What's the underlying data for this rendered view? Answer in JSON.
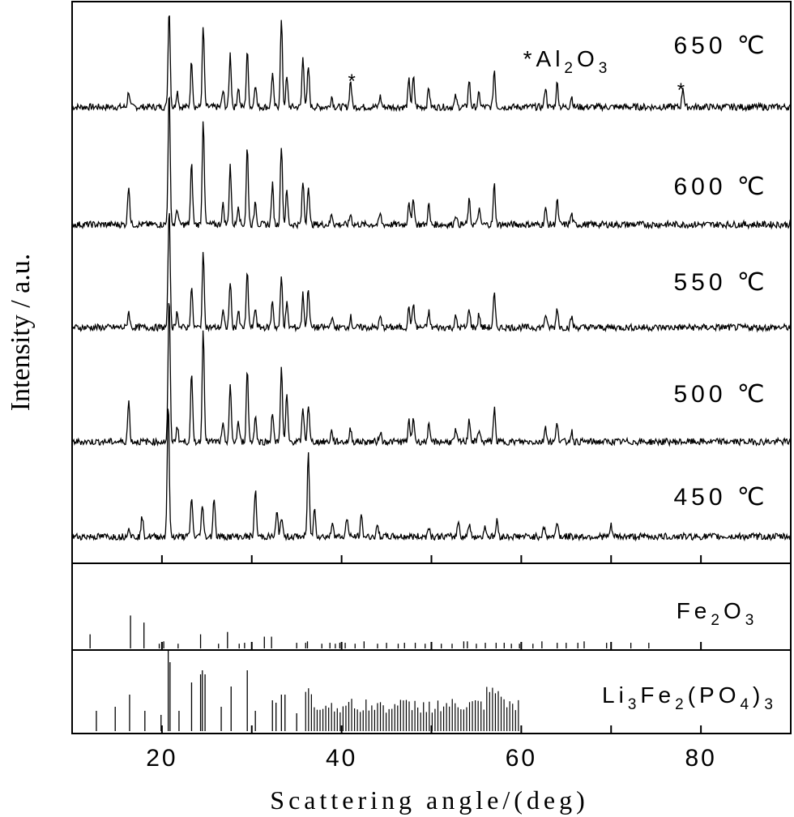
{
  "chart_data": {
    "type": "line",
    "xlabel": "Scattering angle/(deg)",
    "ylabel": "Intensity / a.u.",
    "xlim": [
      10,
      90
    ],
    "x_ticks": [
      20,
      40,
      60,
      80
    ],
    "grid": false,
    "annotation": "*Al2O3",
    "impurity_marker": "*",
    "impurity_peaks": [
      41.0,
      78.0
    ],
    "series": [
      {
        "name": "650 ℃",
        "baseline": 0.12,
        "peaks": [
          [
            16.3,
            0.12
          ],
          [
            20.8,
            0.75
          ],
          [
            21.7,
            0.12
          ],
          [
            23.3,
            0.35
          ],
          [
            24.6,
            0.6
          ],
          [
            26.8,
            0.12
          ],
          [
            27.6,
            0.4
          ],
          [
            28.5,
            0.15
          ],
          [
            29.5,
            0.42
          ],
          [
            30.4,
            0.18
          ],
          [
            32.3,
            0.25
          ],
          [
            33.3,
            0.65
          ],
          [
            33.9,
            0.22
          ],
          [
            35.7,
            0.38
          ],
          [
            36.3,
            0.3
          ],
          [
            38.9,
            0.08
          ],
          [
            41.0,
            0.2
          ],
          [
            44.3,
            0.08
          ],
          [
            47.5,
            0.2
          ],
          [
            48.0,
            0.22
          ],
          [
            49.7,
            0.15
          ],
          [
            52.7,
            0.08
          ],
          [
            54.2,
            0.2
          ],
          [
            55.3,
            0.1
          ],
          [
            57.0,
            0.28
          ],
          [
            62.7,
            0.15
          ],
          [
            64.0,
            0.18
          ],
          [
            65.6,
            0.08
          ],
          [
            78.0,
            0.15
          ]
        ]
      },
      {
        "name": "600 ℃",
        "baseline": 0.12,
        "peaks": [
          [
            16.3,
            0.3
          ],
          [
            20.8,
            1.0
          ],
          [
            21.7,
            0.12
          ],
          [
            23.3,
            0.45
          ],
          [
            24.6,
            0.8
          ],
          [
            26.8,
            0.15
          ],
          [
            27.6,
            0.45
          ],
          [
            28.5,
            0.15
          ],
          [
            29.5,
            0.58
          ],
          [
            30.4,
            0.18
          ],
          [
            32.3,
            0.3
          ],
          [
            33.3,
            0.6
          ],
          [
            33.9,
            0.25
          ],
          [
            35.7,
            0.32
          ],
          [
            36.3,
            0.3
          ],
          [
            38.9,
            0.08
          ],
          [
            41.0,
            0.08
          ],
          [
            44.3,
            0.08
          ],
          [
            47.5,
            0.18
          ],
          [
            48.0,
            0.2
          ],
          [
            49.7,
            0.15
          ],
          [
            52.7,
            0.08
          ],
          [
            54.2,
            0.18
          ],
          [
            55.3,
            0.12
          ],
          [
            57.0,
            0.3
          ],
          [
            62.7,
            0.12
          ],
          [
            64.0,
            0.18
          ],
          [
            65.6,
            0.08
          ]
        ]
      },
      {
        "name": "550 ℃",
        "baseline": 0.12,
        "peaks": [
          [
            16.3,
            0.12
          ],
          [
            20.8,
            0.9
          ],
          [
            21.7,
            0.12
          ],
          [
            23.3,
            0.3
          ],
          [
            24.6,
            0.55
          ],
          [
            26.8,
            0.12
          ],
          [
            27.6,
            0.35
          ],
          [
            28.5,
            0.12
          ],
          [
            29.5,
            0.42
          ],
          [
            30.4,
            0.15
          ],
          [
            32.3,
            0.2
          ],
          [
            33.3,
            0.38
          ],
          [
            33.9,
            0.18
          ],
          [
            35.7,
            0.25
          ],
          [
            36.3,
            0.3
          ],
          [
            38.9,
            0.08
          ],
          [
            41.0,
            0.08
          ],
          [
            44.3,
            0.08
          ],
          [
            47.5,
            0.15
          ],
          [
            48.0,
            0.18
          ],
          [
            49.7,
            0.12
          ],
          [
            52.7,
            0.08
          ],
          [
            54.2,
            0.15
          ],
          [
            55.3,
            0.1
          ],
          [
            57.0,
            0.25
          ],
          [
            62.7,
            0.1
          ],
          [
            64.0,
            0.15
          ],
          [
            65.6,
            0.08
          ]
        ]
      },
      {
        "name": "500 ℃",
        "baseline": 0.12,
        "peaks": [
          [
            16.3,
            0.3
          ],
          [
            20.8,
            1.1
          ],
          [
            21.7,
            0.12
          ],
          [
            23.3,
            0.5
          ],
          [
            24.6,
            0.85
          ],
          [
            26.8,
            0.12
          ],
          [
            27.6,
            0.42
          ],
          [
            28.5,
            0.15
          ],
          [
            29.5,
            0.55
          ],
          [
            30.4,
            0.2
          ],
          [
            32.3,
            0.22
          ],
          [
            33.3,
            0.55
          ],
          [
            33.9,
            0.35
          ],
          [
            35.7,
            0.25
          ],
          [
            36.3,
            0.28
          ],
          [
            38.9,
            0.08
          ],
          [
            41.0,
            0.1
          ],
          [
            44.3,
            0.08
          ],
          [
            47.5,
            0.15
          ],
          [
            48.0,
            0.18
          ],
          [
            49.7,
            0.12
          ],
          [
            52.7,
            0.08
          ],
          [
            54.2,
            0.18
          ],
          [
            55.3,
            0.1
          ],
          [
            57.0,
            0.25
          ],
          [
            62.7,
            0.12
          ],
          [
            64.0,
            0.15
          ],
          [
            65.6,
            0.08
          ]
        ]
      },
      {
        "name": "450 ℃",
        "baseline": 0.12,
        "peaks": [
          [
            16.3,
            0.08
          ],
          [
            17.8,
            0.15
          ],
          [
            20.7,
            1.0
          ],
          [
            23.3,
            0.3
          ],
          [
            24.5,
            0.25
          ],
          [
            25.8,
            0.3
          ],
          [
            30.4,
            0.35
          ],
          [
            32.8,
            0.18
          ],
          [
            33.3,
            0.15
          ],
          [
            36.3,
            0.62
          ],
          [
            37.0,
            0.22
          ],
          [
            39.0,
            0.12
          ],
          [
            40.6,
            0.15
          ],
          [
            42.2,
            0.15
          ],
          [
            44.0,
            0.08
          ],
          [
            49.7,
            0.08
          ],
          [
            53.0,
            0.12
          ],
          [
            54.2,
            0.1
          ],
          [
            56.0,
            0.08
          ],
          [
            57.3,
            0.12
          ],
          [
            62.5,
            0.08
          ],
          [
            64.0,
            0.12
          ],
          [
            70.0,
            0.08
          ]
        ]
      }
    ],
    "references": [
      {
        "name": "Fe2O3",
        "label_parts": [
          [
            "Fe",
            ""
          ],
          [
            "2",
            "sub"
          ],
          [
            "O",
            ""
          ],
          [
            "3",
            "sub"
          ]
        ],
        "lines": [
          [
            12.0,
            0.3
          ],
          [
            16.5,
            0.7
          ],
          [
            18.0,
            0.55
          ],
          [
            19.7,
            0.1
          ],
          [
            20.2,
            0.15
          ],
          [
            21.8,
            0.1
          ],
          [
            24.3,
            0.3
          ],
          [
            26.3,
            0.1
          ],
          [
            27.3,
            0.35
          ],
          [
            28.6,
            0.1
          ],
          [
            29.2,
            0.12
          ],
          [
            31.4,
            0.25
          ],
          [
            32.2,
            0.25
          ],
          [
            35.0,
            0.12
          ],
          [
            36.0,
            0.12
          ],
          [
            36.2,
            0.15
          ],
          [
            37.8,
            0.1
          ],
          [
            38.7,
            0.12
          ],
          [
            39.3,
            0.1
          ],
          [
            39.8,
            0.12
          ],
          [
            40.4,
            0.12
          ],
          [
            41.5,
            0.1
          ],
          [
            42.5,
            0.15
          ],
          [
            44.0,
            0.1
          ],
          [
            45.0,
            0.12
          ],
          [
            46.3,
            0.1
          ],
          [
            47.0,
            0.12
          ],
          [
            48.2,
            0.12
          ],
          [
            49.3,
            0.1
          ],
          [
            51.1,
            0.1
          ],
          [
            52.3,
            0.1
          ],
          [
            53.6,
            0.15
          ],
          [
            54.0,
            0.15
          ],
          [
            55.0,
            0.1
          ],
          [
            56.0,
            0.12
          ],
          [
            57.2,
            0.12
          ],
          [
            58.1,
            0.12
          ],
          [
            58.9,
            0.1
          ],
          [
            59.8,
            0.1
          ],
          [
            61.3,
            0.1
          ],
          [
            62.3,
            0.15
          ],
          [
            64.0,
            0.12
          ],
          [
            65.0,
            0.12
          ],
          [
            66.3,
            0.12
          ],
          [
            67.0,
            0.15
          ],
          [
            69.5,
            0.12
          ],
          [
            72.2,
            0.12
          ],
          [
            74.2,
            0.12
          ]
        ]
      },
      {
        "name": "Li3Fe2(PO4)3",
        "label_parts": [
          [
            "Li",
            ""
          ],
          [
            "3",
            "sub"
          ],
          [
            "Fe",
            ""
          ],
          [
            "2",
            "sub"
          ],
          [
            "(PO",
            ""
          ],
          [
            "4",
            "sub"
          ],
          [
            ")",
            ""
          ],
          [
            "3",
            "sub"
          ]
        ],
        "lines": [
          [
            12.7,
            0.25
          ],
          [
            14.8,
            0.3
          ],
          [
            16.4,
            0.45
          ],
          [
            18.1,
            0.25
          ],
          [
            19.9,
            0.2
          ],
          [
            20.7,
            1.0
          ],
          [
            20.9,
            0.85
          ],
          [
            21.9,
            0.25
          ],
          [
            23.3,
            0.6
          ],
          [
            24.3,
            0.7
          ],
          [
            24.5,
            0.75
          ],
          [
            24.8,
            0.7
          ],
          [
            26.6,
            0.3
          ],
          [
            27.7,
            0.55
          ],
          [
            29.5,
            0.75
          ],
          [
            30.4,
            0.25
          ],
          [
            32.3,
            0.38
          ],
          [
            32.7,
            0.35
          ],
          [
            33.3,
            0.45
          ],
          [
            33.7,
            0.45
          ],
          [
            35.0,
            0.22
          ]
        ]
      }
    ]
  }
}
